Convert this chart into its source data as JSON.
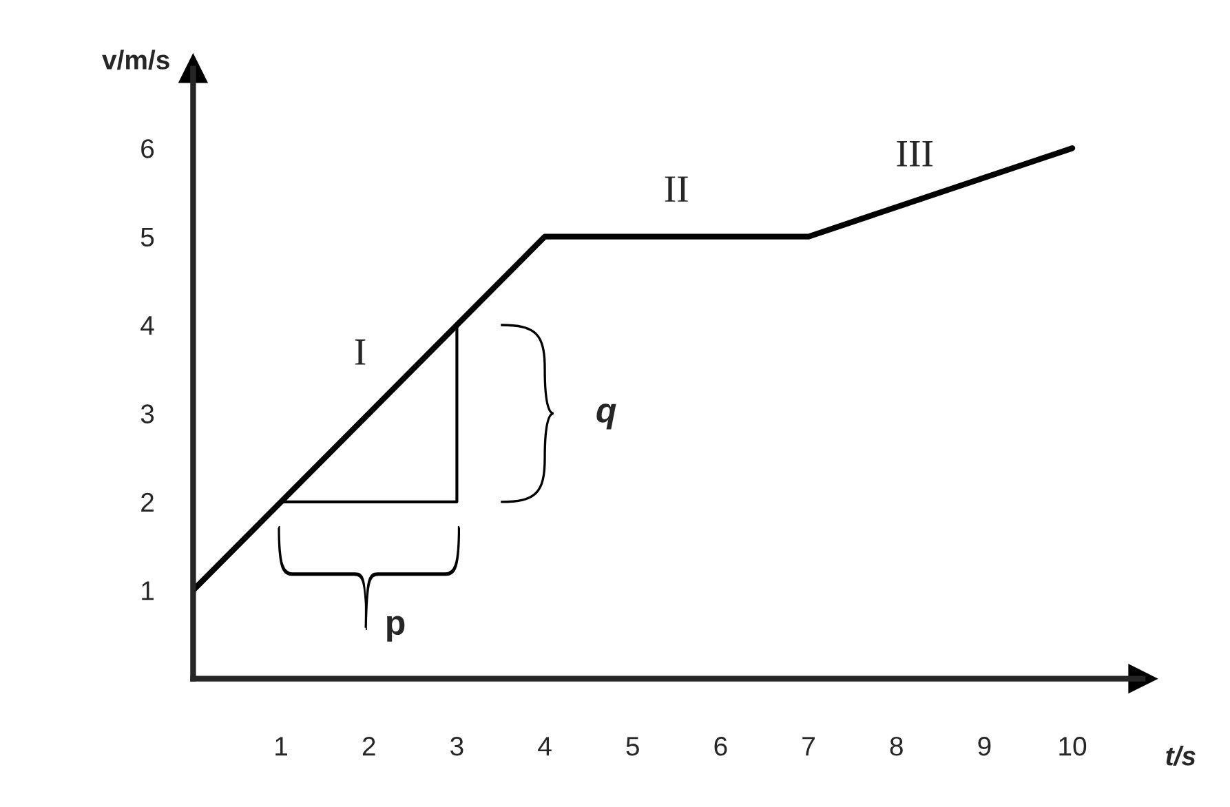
{
  "chart_data": {
    "type": "line",
    "xlabel": "t/s",
    "ylabel": "v/m/s",
    "xlim": [
      0,
      10.8
    ],
    "ylim": [
      0,
      6.9
    ],
    "xticks": [
      1,
      2,
      3,
      4,
      5,
      6,
      7,
      8,
      9,
      10
    ],
    "yticks": [
      1,
      2,
      3,
      4,
      5,
      6
    ],
    "series": [
      {
        "color": "#000000",
        "x": [
          0,
          4,
          7,
          10
        ],
        "values": [
          1,
          5,
          5,
          6
        ]
      },
      {
        "color": "#000000",
        "x": [
          1,
          3,
          3
        ],
        "values": [
          2,
          2,
          4
        ]
      }
    ],
    "annotations": [
      "I",
      "II",
      "III",
      "p",
      "q"
    ],
    "grid": false,
    "legend": false,
    "marker": "none",
    "line_style": "solid"
  }
}
